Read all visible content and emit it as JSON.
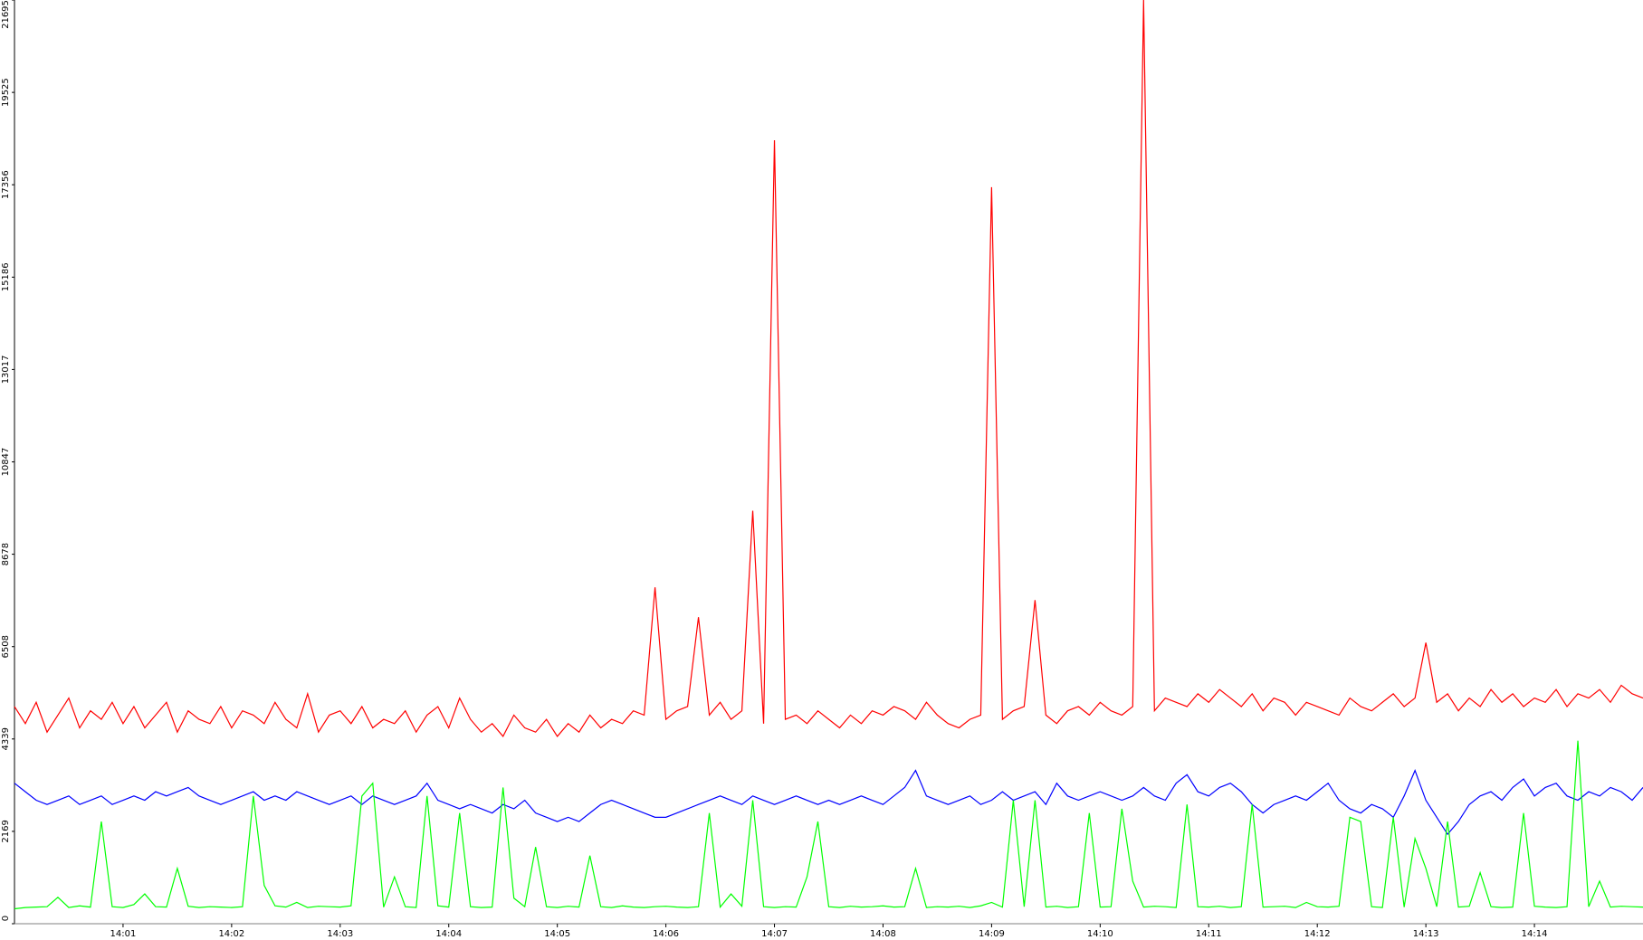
{
  "chart_data": {
    "type": "line",
    "x": [
      0,
      0.1,
      0.2,
      0.3,
      0.4,
      0.5,
      0.6,
      0.7,
      0.8,
      0.9,
      1,
      1.1,
      1.2,
      1.3,
      1.4,
      1.5,
      1.6,
      1.7,
      1.8,
      1.9,
      2,
      2.1,
      2.2,
      2.3,
      2.4,
      2.5,
      2.6,
      2.7,
      2.8,
      2.9,
      3,
      3.1,
      3.2,
      3.3,
      3.4,
      3.5,
      3.6,
      3.7,
      3.8,
      3.9,
      4,
      4.1,
      4.2,
      4.3,
      4.4,
      4.5,
      4.6,
      4.7,
      4.8,
      4.9,
      5,
      5.1,
      5.2,
      5.3,
      5.4,
      5.5,
      5.6,
      5.7,
      5.8,
      5.9,
      6,
      6.1,
      6.2,
      6.3,
      6.4,
      6.5,
      6.6,
      6.7,
      6.8,
      6.9,
      7,
      7.1,
      7.2,
      7.3,
      7.4,
      7.5,
      7.6,
      7.7,
      7.8,
      7.9,
      8,
      8.1,
      8.2,
      8.3,
      8.4,
      8.5,
      8.6,
      8.7,
      8.8,
      8.9,
      9,
      9.1,
      9.2,
      9.3,
      9.4,
      9.5,
      9.6,
      9.7,
      9.8,
      9.9,
      10,
      10.1,
      10.2,
      10.3,
      10.4,
      10.5,
      10.6,
      10.7,
      10.8,
      10.9,
      11,
      11.1,
      11.2,
      11.3,
      11.4,
      11.5,
      11.6,
      11.7,
      11.8,
      11.9,
      12,
      12.1,
      12.2,
      12.3,
      12.4,
      12.5,
      12.6,
      12.7,
      12.8,
      12.9,
      13,
      13.1,
      13.2,
      13.3,
      13.4,
      13.5,
      13.6,
      13.7,
      13.8,
      13.9,
      14,
      14.1,
      14.2,
      14.3,
      14.4,
      14.5,
      14.6,
      14.7,
      14.8,
      14.9,
      15
    ],
    "series": [
      {
        "color": "#ff0000",
        "values": [
          5100,
          4700,
          5200,
          4500,
          4900,
          5300,
          4600,
          5000,
          4800,
          5200,
          4700,
          5100,
          4600,
          4900,
          5200,
          4500,
          5000,
          4800,
          4700,
          5100,
          4600,
          5000,
          4900,
          4700,
          5200,
          4800,
          4600,
          5400,
          4500,
          4900,
          5000,
          4700,
          5100,
          4600,
          4800,
          4700,
          5000,
          4500,
          4900,
          5100,
          4600,
          5300,
          4800,
          4500,
          4700,
          4400,
          4900,
          4600,
          4500,
          4800,
          4400,
          4700,
          4500,
          4900,
          4600,
          4800,
          4700,
          5000,
          4900,
          7900,
          4800,
          5000,
          5100,
          7200,
          4900,
          5200,
          4800,
          5000,
          9700,
          4700,
          18400,
          4800,
          4900,
          4700,
          5000,
          4800,
          4600,
          4900,
          4700,
          5000,
          4900,
          5100,
          5000,
          4800,
          5200,
          4900,
          4700,
          4600,
          4800,
          4900,
          17300,
          4800,
          5000,
          5100,
          7600,
          4900,
          4700,
          5000,
          5100,
          4900,
          5200,
          5000,
          4900,
          5100,
          21695,
          5000,
          5300,
          5200,
          5100,
          5400,
          5200,
          5500,
          5300,
          5100,
          5400,
          5000,
          5300,
          5200,
          4900,
          5200,
          5100,
          5000,
          4900,
          5300,
          5100,
          5000,
          5200,
          5400,
          5100,
          5300,
          6600,
          5200,
          5400,
          5000,
          5300,
          5100,
          5500,
          5200,
          5400,
          5100,
          5300,
          5200,
          5500,
          5100,
          5400,
          5300,
          5500,
          5200,
          5600,
          5400,
          5300
        ]
      },
      {
        "color": "#0000ff",
        "values": [
          3300,
          3100,
          2900,
          2800,
          2900,
          3000,
          2800,
          2900,
          3000,
          2800,
          2900,
          3000,
          2900,
          3100,
          3000,
          3100,
          3200,
          3000,
          2900,
          2800,
          2900,
          3000,
          3100,
          2900,
          3000,
          2900,
          3100,
          3000,
          2900,
          2800,
          2900,
          3000,
          2800,
          3000,
          2900,
          2800,
          2900,
          3000,
          3300,
          2900,
          2800,
          2700,
          2800,
          2700,
          2600,
          2800,
          2700,
          2900,
          2600,
          2500,
          2400,
          2500,
          2400,
          2600,
          2800,
          2900,
          2800,
          2700,
          2600,
          2500,
          2500,
          2600,
          2700,
          2800,
          2900,
          3000,
          2900,
          2800,
          3000,
          2900,
          2800,
          2900,
          3000,
          2900,
          2800,
          2900,
          2800,
          2900,
          3000,
          2900,
          2800,
          3000,
          3200,
          3600,
          3000,
          2900,
          2800,
          2900,
          3000,
          2800,
          2900,
          3100,
          2900,
          3000,
          3100,
          2800,
          3300,
          3000,
          2900,
          3000,
          3100,
          3000,
          2900,
          3000,
          3200,
          3000,
          2900,
          3300,
          3500,
          3100,
          3000,
          3200,
          3300,
          3100,
          2800,
          2600,
          2800,
          2900,
          3000,
          2900,
          3100,
          3300,
          2900,
          2700,
          2600,
          2800,
          2700,
          2500,
          3000,
          3600,
          2900,
          2500,
          2100,
          2400,
          2800,
          3000,
          3100,
          2900,
          3200,
          3400,
          3000,
          3200,
          3300,
          3000,
          2900,
          3100,
          3000,
          3200,
          3100,
          2900,
          3200
        ]
      },
      {
        "color": "#00ff00",
        "values": [
          350,
          380,
          390,
          400,
          620,
          380,
          420,
          390,
          2400,
          400,
          380,
          450,
          700,
          400,
          390,
          1300,
          410,
          380,
          400,
          390,
          380,
          400,
          3000,
          900,
          420,
          390,
          500,
          380,
          410,
          400,
          390,
          420,
          3000,
          3300,
          390,
          1100,
          400,
          380,
          3000,
          420,
          390,
          2600,
          400,
          380,
          390,
          3200,
          600,
          400,
          1800,
          400,
          380,
          410,
          390,
          1600,
          400,
          380,
          420,
          390,
          380,
          400,
          410,
          390,
          380,
          400,
          2600,
          390,
          700,
          410,
          2900,
          400,
          380,
          400,
          390,
          1100,
          2400,
          400,
          380,
          410,
          390,
          400,
          420,
          390,
          400,
          1300,
          380,
          400,
          390,
          410,
          380,
          420,
          500,
          390,
          2900,
          400,
          2900,
          390,
          410,
          380,
          400,
          2600,
          390,
          400,
          2700,
          1000,
          390,
          410,
          400,
          380,
          2800,
          400,
          390,
          410,
          380,
          400,
          2800,
          390,
          400,
          410,
          380,
          500,
          400,
          390,
          410,
          2500,
          2400,
          400,
          380,
          2500,
          390,
          2000,
          1300,
          400,
          2400,
          390,
          410,
          1200,
          400,
          380,
          390,
          2600,
          410,
          390,
          380,
          400,
          4300,
          400,
          1000,
          390,
          410,
          400,
          390
        ]
      }
    ],
    "xlim": [
      0,
      15
    ],
    "xticks": [
      {
        "value": 1,
        "label": "14:01"
      },
      {
        "value": 2,
        "label": "14:02"
      },
      {
        "value": 3,
        "label": "14:03"
      },
      {
        "value": 4,
        "label": "14:04"
      },
      {
        "value": 5,
        "label": "14:05"
      },
      {
        "value": 6,
        "label": "14:06"
      },
      {
        "value": 7,
        "label": "14:07"
      },
      {
        "value": 8,
        "label": "14:08"
      },
      {
        "value": 9,
        "label": "14:09"
      },
      {
        "value": 10,
        "label": "14:10"
      },
      {
        "value": 11,
        "label": "14:11"
      },
      {
        "value": 12,
        "label": "14:12"
      },
      {
        "value": 13,
        "label": "14:13"
      },
      {
        "value": 14,
        "label": "14:14"
      }
    ],
    "ylim": [
      0,
      21695
    ],
    "yticks": [
      0,
      2169,
      4339,
      6508,
      8678,
      10847,
      13017,
      15186,
      17356,
      19525,
      21695
    ],
    "grid": false
  }
}
